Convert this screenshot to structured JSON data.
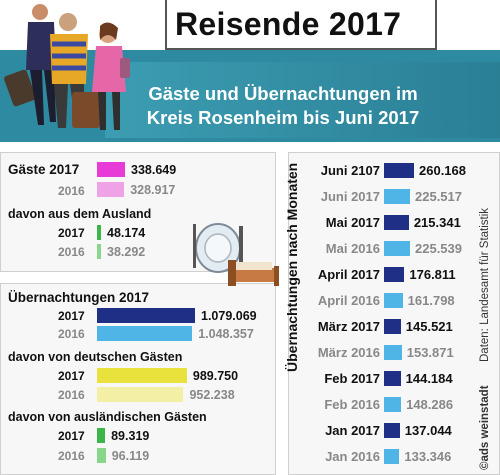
{
  "header": {
    "title": "Reisende 2017",
    "subtitle_line1": "Gäste und Übernachtungen im",
    "subtitle_line2": "Kreis Rosenheim bis Juni 2017"
  },
  "side": {
    "axis_title": "Übernachtungen nach Monaten",
    "source": "Daten: Landesamt für Statistik",
    "credit": "©ads weinstadt"
  },
  "colors": {
    "magenta": "#e83ad6",
    "magenta_light": "#f0a2e6",
    "green": "#3cb54a",
    "green_light": "#88d68a",
    "navy": "#1f2f86",
    "light_blue": "#4fb4e6",
    "yellow": "#e9e23c",
    "yellow_light": "#f3f0a5"
  },
  "chart_data": [
    {
      "type": "bar",
      "title": "Gäste 2017",
      "groups": [
        {
          "label": "Gäste 2017",
          "items": [
            {
              "label": "",
              "value": 338649,
              "value_label": "338.649",
              "color": "#e83ad6",
              "current": true
            },
            {
              "label": "2016",
              "value": 328917,
              "value_label": "328.917",
              "color": "#f0a2e6",
              "current": false
            }
          ]
        },
        {
          "label": "davon aus dem Ausland",
          "items": [
            {
              "label": "2017",
              "value": 48174,
              "value_label": "48.174",
              "color": "#3cb54a",
              "current": true
            },
            {
              "label": "2016",
              "value": 38292,
              "value_label": "38.292",
              "color": "#88d68a",
              "current": false
            }
          ]
        }
      ]
    },
    {
      "type": "bar",
      "title": "Übernachtungen 2017",
      "groups": [
        {
          "label": "Übernachtungen 2017",
          "items": [
            {
              "label": "2017",
              "value": 1079069,
              "value_label": "1.079.069",
              "color": "#1f2f86",
              "current": true
            },
            {
              "label": "2016",
              "value": 1048357,
              "value_label": "1.048.357",
              "color": "#4fb4e6",
              "current": false
            }
          ]
        },
        {
          "label": "davon von deutschen Gästen",
          "items": [
            {
              "label": "2017",
              "value": 989750,
              "value_label": "989.750",
              "color": "#e9e23c",
              "current": true
            },
            {
              "label": "2016",
              "value": 952238,
              "value_label": "952.238",
              "color": "#f3f0a5",
              "current": false
            }
          ]
        },
        {
          "label": "davon von ausländischen Gästen",
          "items": [
            {
              "label": "2017",
              "value": 89319,
              "value_label": "89.319",
              "color": "#3cb54a",
              "current": true
            },
            {
              "label": "2016",
              "value": 96119,
              "value_label": "96.119",
              "color": "#88d68a",
              "current": false
            }
          ]
        }
      ]
    },
    {
      "type": "bar",
      "title": "Übernachtungen nach Monaten",
      "items": [
        {
          "label": "Juni 2107",
          "value": 260168,
          "value_label": "260.168",
          "current": true
        },
        {
          "label": "Juni 2017",
          "value": 225517,
          "value_label": "225.517",
          "current": false
        },
        {
          "label": "Mai 2017",
          "value": 215341,
          "value_label": "215.341",
          "current": true
        },
        {
          "label": "Mai 2016",
          "value": 225539,
          "value_label": "225.539",
          "current": false
        },
        {
          "label": "April 2017",
          "value": 176811,
          "value_label": "176.811",
          "current": true
        },
        {
          "label": "April 2016",
          "value": 161798,
          "value_label": "161.798",
          "current": false
        },
        {
          "label": "März 2017",
          "value": 145521,
          "value_label": "145.521",
          "current": true
        },
        {
          "label": "März 2016",
          "value": 153871,
          "value_label": "153.871",
          "current": false
        },
        {
          "label": "Feb 2017",
          "value": 144184,
          "value_label": "144.184",
          "current": true
        },
        {
          "label": "Feb 2016",
          "value": 148286,
          "value_label": "148.286",
          "current": false
        },
        {
          "label": "Jan 2017",
          "value": 137044,
          "value_label": "137.044",
          "current": true
        },
        {
          "label": "Jan 2016",
          "value": 133346,
          "value_label": "133.346",
          "current": false
        }
      ]
    }
  ]
}
